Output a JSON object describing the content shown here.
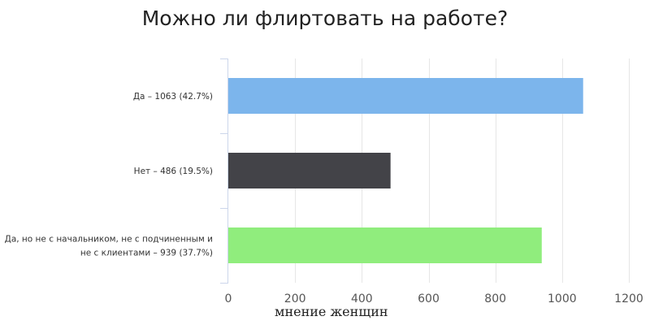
{
  "chart_data": {
    "type": "bar",
    "orientation": "horizontal",
    "title": "Можно ли флиртовать на работе?",
    "xlabel": "мнение женщин",
    "ylabel": "",
    "categories": [
      [
        "Да – 1063 (42.7%)"
      ],
      [
        "Нет – 486 (19.5%)"
      ],
      [
        "Да, но не с начальником, не с подчиненным и",
        "не с клиентами – 939 (37.7%)"
      ]
    ],
    "values": [
      1063,
      486,
      939
    ],
    "colors": [
      "#7cb5ec",
      "#434348",
      "#90ed7d"
    ],
    "xlim": [
      0,
      1200
    ],
    "xticks": [
      0,
      200,
      400,
      600,
      800,
      1000,
      1200
    ],
    "grid": true,
    "legend": "none"
  }
}
